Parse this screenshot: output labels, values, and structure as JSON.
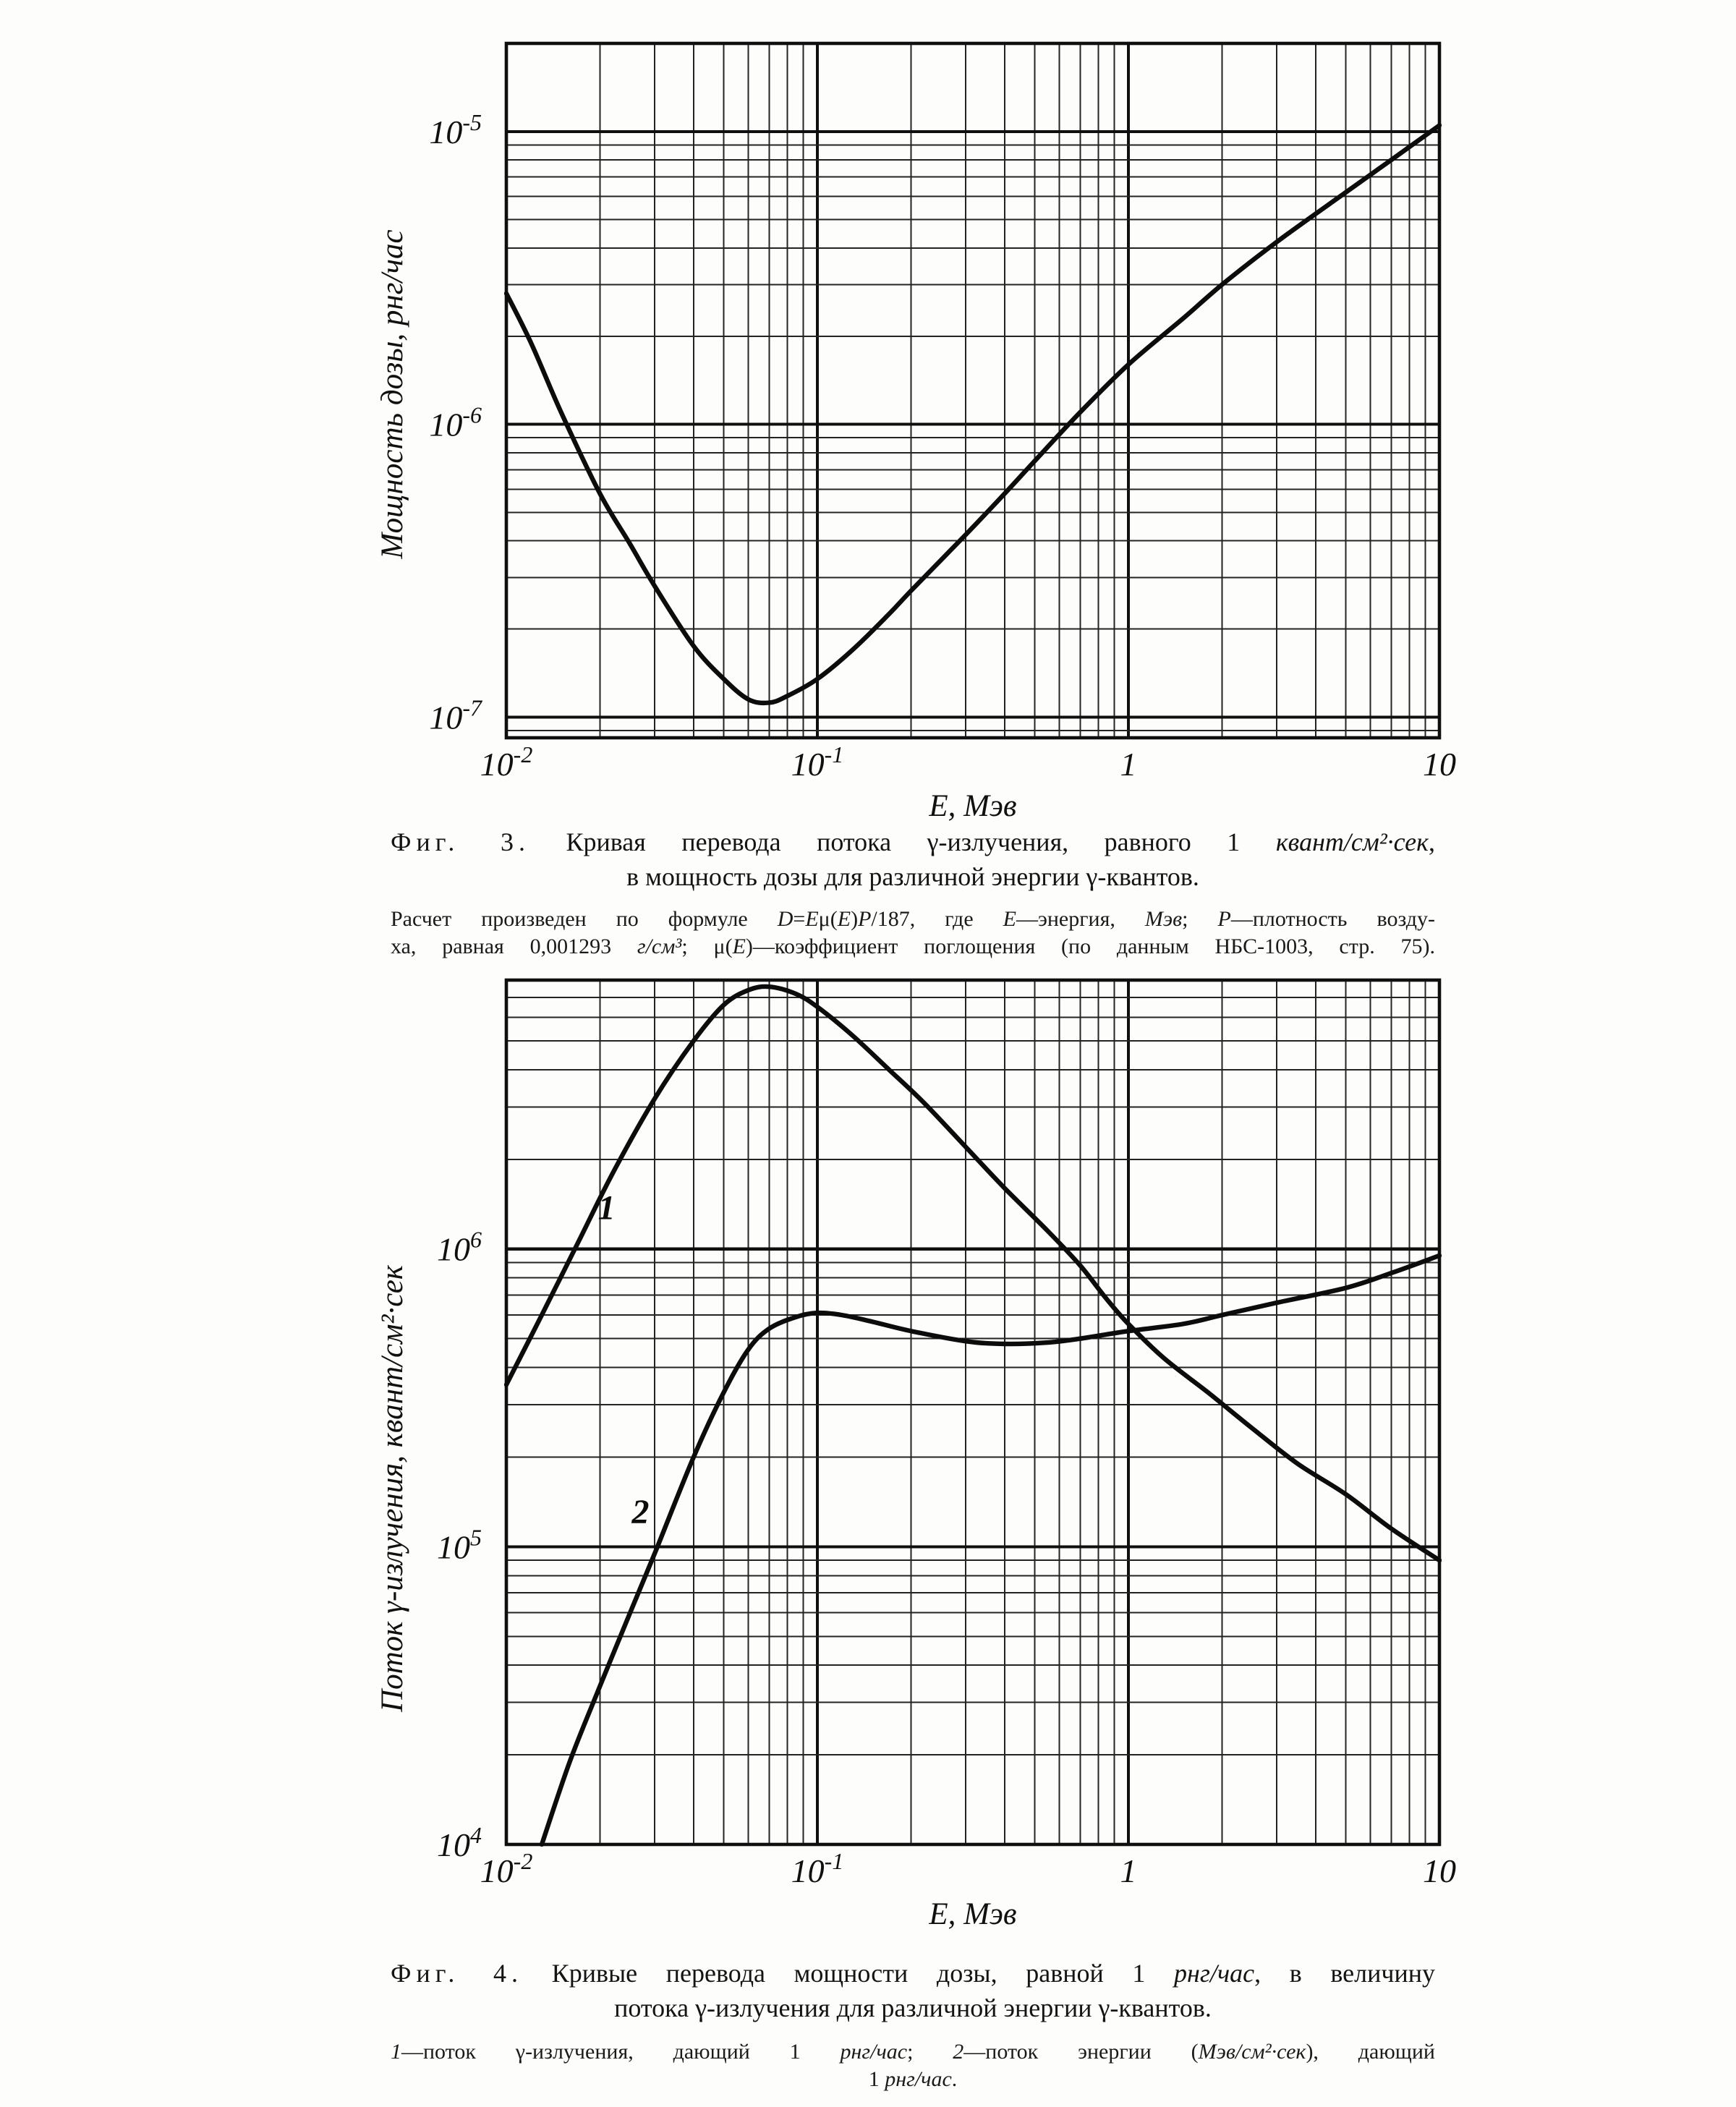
{
  "page": {
    "background": "#fdfdfb",
    "ink": "#141414"
  },
  "figures": [
    {
      "name": "Фиг. 3",
      "caption": [
        [
          {
            "t": "Фиг. 3.",
            "sp": true
          },
          {
            "t": " Кривая перевода потока γ-излучения, равного 1 "
          },
          {
            "t": "квант/см²·сек",
            "i": true
          },
          {
            "t": ","
          }
        ],
        [
          {
            "t": "в мощность дозы для различной энергии γ-квантов."
          }
        ]
      ],
      "subcaption": [
        [
          {
            "t": "Расчет произведен по формуле "
          },
          {
            "t": "D",
            "i": true
          },
          {
            "t": "="
          },
          {
            "t": "E",
            "i": true
          },
          {
            "t": "μ("
          },
          {
            "t": "E",
            "i": true
          },
          {
            "t": ")"
          },
          {
            "t": "P",
            "i": true
          },
          {
            "t": "/187, где "
          },
          {
            "t": "E",
            "i": true
          },
          {
            "t": "—энергия, "
          },
          {
            "t": "Мэв",
            "i": true
          },
          {
            "t": "; "
          },
          {
            "t": "P",
            "i": true
          },
          {
            "t": "—плотность возду-"
          }
        ],
        [
          {
            "t": "ха, равная 0,001293 "
          },
          {
            "t": "г/см³",
            "i": true
          },
          {
            "t": "; μ("
          },
          {
            "t": "E",
            "i": true
          },
          {
            "t": ")—коэффициент поглощения (по данным НБС-1003, стр. 75)."
          }
        ]
      ]
    },
    {
      "name": "Фиг. 4",
      "caption": [
        [
          {
            "t": "Фиг. 4.",
            "sp": true
          },
          {
            "t": " Кривые перевода мощности дозы, равной 1 "
          },
          {
            "t": "рнг/час",
            "i": true
          },
          {
            "t": ", в величину"
          }
        ],
        [
          {
            "t": "потока γ-излучения для различной энергии γ-квантов."
          }
        ]
      ],
      "subcaption": [
        [
          {
            "t": "1",
            "i": true
          },
          {
            "t": "—поток γ-излучения, дающий 1 "
          },
          {
            "t": "рнг/час",
            "i": true
          },
          {
            "t": "; "
          },
          {
            "t": "2",
            "i": true
          },
          {
            "t": "—поток энергии ("
          },
          {
            "t": "Мэв/см²·сек",
            "i": true
          },
          {
            "t": "), дающий"
          }
        ],
        [
          {
            "t": "1 "
          },
          {
            "t": "рнг/час",
            "i": true
          },
          {
            "t": "."
          }
        ]
      ]
    }
  ],
  "chart_data": [
    {
      "type": "line",
      "title": "Фиг. 3. Кривая перевода потока γ-излучения, равного 1 квант/см²·сек, в мощность дозы для различной энергии γ-квантов.",
      "note": "Расчет произведен по формуле D=Eμ(E)P/187, где E—энергия, Мэв; P—плотность воздуха, равная 0,001293 г/см³; μ(E)—коэффициент поглощения (по данным НБС-1003, стр. 75).",
      "xlabel": "E, Мэв",
      "ylabel": "Мощность дозы, рнг/час",
      "x_scale": "log",
      "y_scale": "log",
      "xlim": [
        0.01,
        10
      ],
      "ylim": [
        8.5e-08,
        2e-05
      ],
      "grid": "full log-log graph paper, minor lines at mantissas 1-9 each decade",
      "legend_position": "none",
      "x_ticks": [
        {
          "v": 0.01,
          "m": "10",
          "e": "-2"
        },
        {
          "v": 0.1,
          "m": "10",
          "e": "-1"
        },
        {
          "v": 1,
          "m": "1"
        },
        {
          "v": 10,
          "m": "10"
        }
      ],
      "y_ticks": [
        {
          "v": 1e-05,
          "m": "10",
          "e": "-5"
        },
        {
          "v": 1e-06,
          "m": "10",
          "e": "-6"
        },
        {
          "v": 1e-07,
          "m": "10",
          "e": "-7"
        }
      ],
      "series": [
        {
          "name": "мощность дозы от потока 1 квант/см²·сек",
          "points": [
            [
              0.01,
              2.8e-06
            ],
            [
              0.012,
              1.9e-06
            ],
            [
              0.015,
              1.1e-06
            ],
            [
              0.02,
              5.8e-07
            ],
            [
              0.025,
              3.9e-07
            ],
            [
              0.03,
              2.8e-07
            ],
            [
              0.04,
              1.75e-07
            ],
            [
              0.05,
              1.35e-07
            ],
            [
              0.06,
              1.15e-07
            ],
            [
              0.07,
              1.12e-07
            ],
            [
              0.08,
              1.18e-07
            ],
            [
              0.1,
              1.35e-07
            ],
            [
              0.13,
              1.7e-07
            ],
            [
              0.17,
              2.25e-07
            ],
            [
              0.2,
              2.7e-07
            ],
            [
              0.3,
              4.2e-07
            ],
            [
              0.4,
              5.8e-07
            ],
            [
              0.5,
              7.5e-07
            ],
            [
              0.7,
              1.1e-06
            ],
            [
              1.0,
              1.6e-06
            ],
            [
              1.5,
              2.3e-06
            ],
            [
              2.0,
              3e-06
            ],
            [
              3.0,
              4.2e-06
            ],
            [
              5.0,
              6.2e-06
            ],
            [
              7.0,
              8e-06
            ],
            [
              10.0,
              1.05e-05
            ]
          ]
        }
      ]
    },
    {
      "type": "line",
      "title": "Фиг. 4. Кривые перевода мощности дозы, равной 1 рнг/час, в величину потока γ-излучения для различной энергии γ-квантов.",
      "note": "1—поток γ-излучения, дающий 1 рнг/час; 2—поток энергии (Мэв/см²·сек), дающий 1 рнг/час.",
      "xlabel": "E, Мэв",
      "ylabel": "Поток γ-излучения, квант/см²·сек",
      "x_scale": "log",
      "y_scale": "log",
      "xlim": [
        0.01,
        10
      ],
      "ylim": [
        10000.0,
        8000000.0
      ],
      "grid": "full log-log graph paper, minor lines at mantissas 1-9 each decade",
      "legend_position": "in-plot numeric labels",
      "x_ticks": [
        {
          "v": 0.01,
          "m": "10",
          "e": "-2"
        },
        {
          "v": 0.1,
          "m": "10",
          "e": "-1"
        },
        {
          "v": 1,
          "m": "1"
        },
        {
          "v": 10,
          "m": "10"
        }
      ],
      "y_ticks": [
        {
          "v": 1000000.0,
          "m": "10",
          "e": "6"
        },
        {
          "v": 100000.0,
          "m": "10",
          "e": "5"
        },
        {
          "v": 10000.0,
          "m": "10",
          "e": "4"
        }
      ],
      "series": [
        {
          "name": "1 — поток γ-излучения, дающий 1 рнг/час",
          "label": "1",
          "label_at": [
            0.021,
            1260000.0
          ],
          "points": [
            [
              0.01,
              350000.0
            ],
            [
              0.013,
              600000.0
            ],
            [
              0.017,
              1050000.0
            ],
            [
              0.022,
              1800000.0
            ],
            [
              0.03,
              3200000.0
            ],
            [
              0.04,
              5000000.0
            ],
            [
              0.05,
              6600000.0
            ],
            [
              0.06,
              7400000.0
            ],
            [
              0.07,
              7600000.0
            ],
            [
              0.085,
              7200000.0
            ],
            [
              0.1,
              6500000.0
            ],
            [
              0.13,
              5200000.0
            ],
            [
              0.17,
              4000000.0
            ],
            [
              0.22,
              3100000.0
            ],
            [
              0.3,
              2200000.0
            ],
            [
              0.4,
              1600000.0
            ],
            [
              0.55,
              1150000.0
            ],
            [
              0.7,
              880000.0
            ],
            [
              0.85,
              680000.0
            ],
            [
              1.0,
              560000.0
            ],
            [
              1.3,
              430000.0
            ],
            [
              1.8,
              330000.0
            ],
            [
              2.5,
              250000.0
            ],
            [
              3.5,
              190000.0
            ],
            [
              5.0,
              150000.0
            ],
            [
              7.0,
              115000.0
            ],
            [
              10.0,
              90000.0
            ]
          ]
        },
        {
          "name": "2 — поток энергии (Мэв/см²·сек), дающий 1 рнг/час",
          "label": "2",
          "label_at": [
            0.027,
            120000.0
          ],
          "points": [
            [
              0.013,
              10000.0
            ],
            [
              0.016,
              19000.0
            ],
            [
              0.02,
              34000.0
            ],
            [
              0.025,
              60000.0
            ],
            [
              0.03,
              95000.0
            ],
            [
              0.04,
              200000.0
            ],
            [
              0.05,
              330000.0
            ],
            [
              0.06,
              460000.0
            ],
            [
              0.07,
              540000.0
            ],
            [
              0.085,
              590000.0
            ],
            [
              0.1,
              610000.0
            ],
            [
              0.12,
              600000.0
            ],
            [
              0.15,
              570000.0
            ],
            [
              0.2,
              530000.0
            ],
            [
              0.3,
              490000.0
            ],
            [
              0.4,
              480000.0
            ],
            [
              0.55,
              485000.0
            ],
            [
              0.7,
              500000.0
            ],
            [
              1.0,
              530000.0
            ],
            [
              1.5,
              560000.0
            ],
            [
              2.0,
              600000.0
            ],
            [
              3.0,
              660000.0
            ],
            [
              5.0,
              740000.0
            ],
            [
              7.0,
              830000.0
            ],
            [
              10.0,
              950000.0
            ]
          ]
        }
      ]
    }
  ]
}
